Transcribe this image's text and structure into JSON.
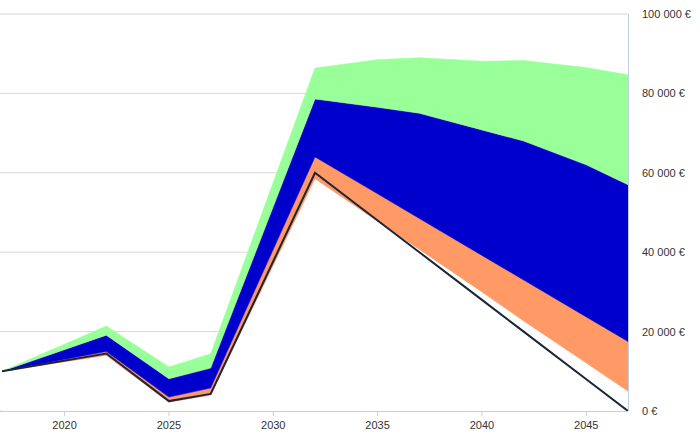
{
  "chart_data": {
    "type": "area",
    "stacked": true,
    "grid": true,
    "x": [
      2017,
      2022,
      2025,
      2027,
      2032,
      2035,
      2037,
      2040,
      2042,
      2045,
      2047
    ],
    "xlim": [
      2017,
      2047
    ],
    "xticks": [
      2020,
      2025,
      2030,
      2035,
      2040,
      2045
    ],
    "ylim": [
      0,
      100000
    ],
    "yticks": [
      {
        "value": 0,
        "label": "0 €"
      },
      {
        "value": 20000,
        "label": "20 000 €"
      },
      {
        "value": 40000,
        "label": "40 000 €"
      },
      {
        "value": 60000,
        "label": "60 000 €"
      },
      {
        "value": 80000,
        "label": "80 000 €"
      },
      {
        "value": 100000,
        "label": "100 000 €"
      }
    ],
    "series": [
      {
        "type": "area",
        "color": "#ffffff",
        "values": [
          10000,
          14000,
          2200,
          4000,
          58500,
          47800,
          40700,
          30000,
          22700,
          12100,
          5000
        ]
      },
      {
        "type": "area",
        "color": "#ff9966",
        "values": [
          0,
          1000,
          1300,
          1800,
          5500,
          6900,
          7800,
          9200,
          10300,
          11600,
          12500
        ]
      },
      {
        "type": "area",
        "color": "#0000cc",
        "values": [
          0,
          4100,
          4600,
          5000,
          14600,
          21800,
          26500,
          31600,
          35000,
          38300,
          39500
        ]
      },
      {
        "type": "area",
        "color": "#99ff99",
        "values": [
          0,
          2300,
          3000,
          3600,
          7800,
          12000,
          14000,
          17300,
          20300,
          24500,
          27700
        ]
      },
      {
        "type": "line",
        "color": "#1a2535",
        "values": [
          10000,
          14500,
          2500,
          4300,
          60000,
          48000,
          40000,
          28000,
          20000,
          8000,
          0
        ]
      }
    ]
  }
}
